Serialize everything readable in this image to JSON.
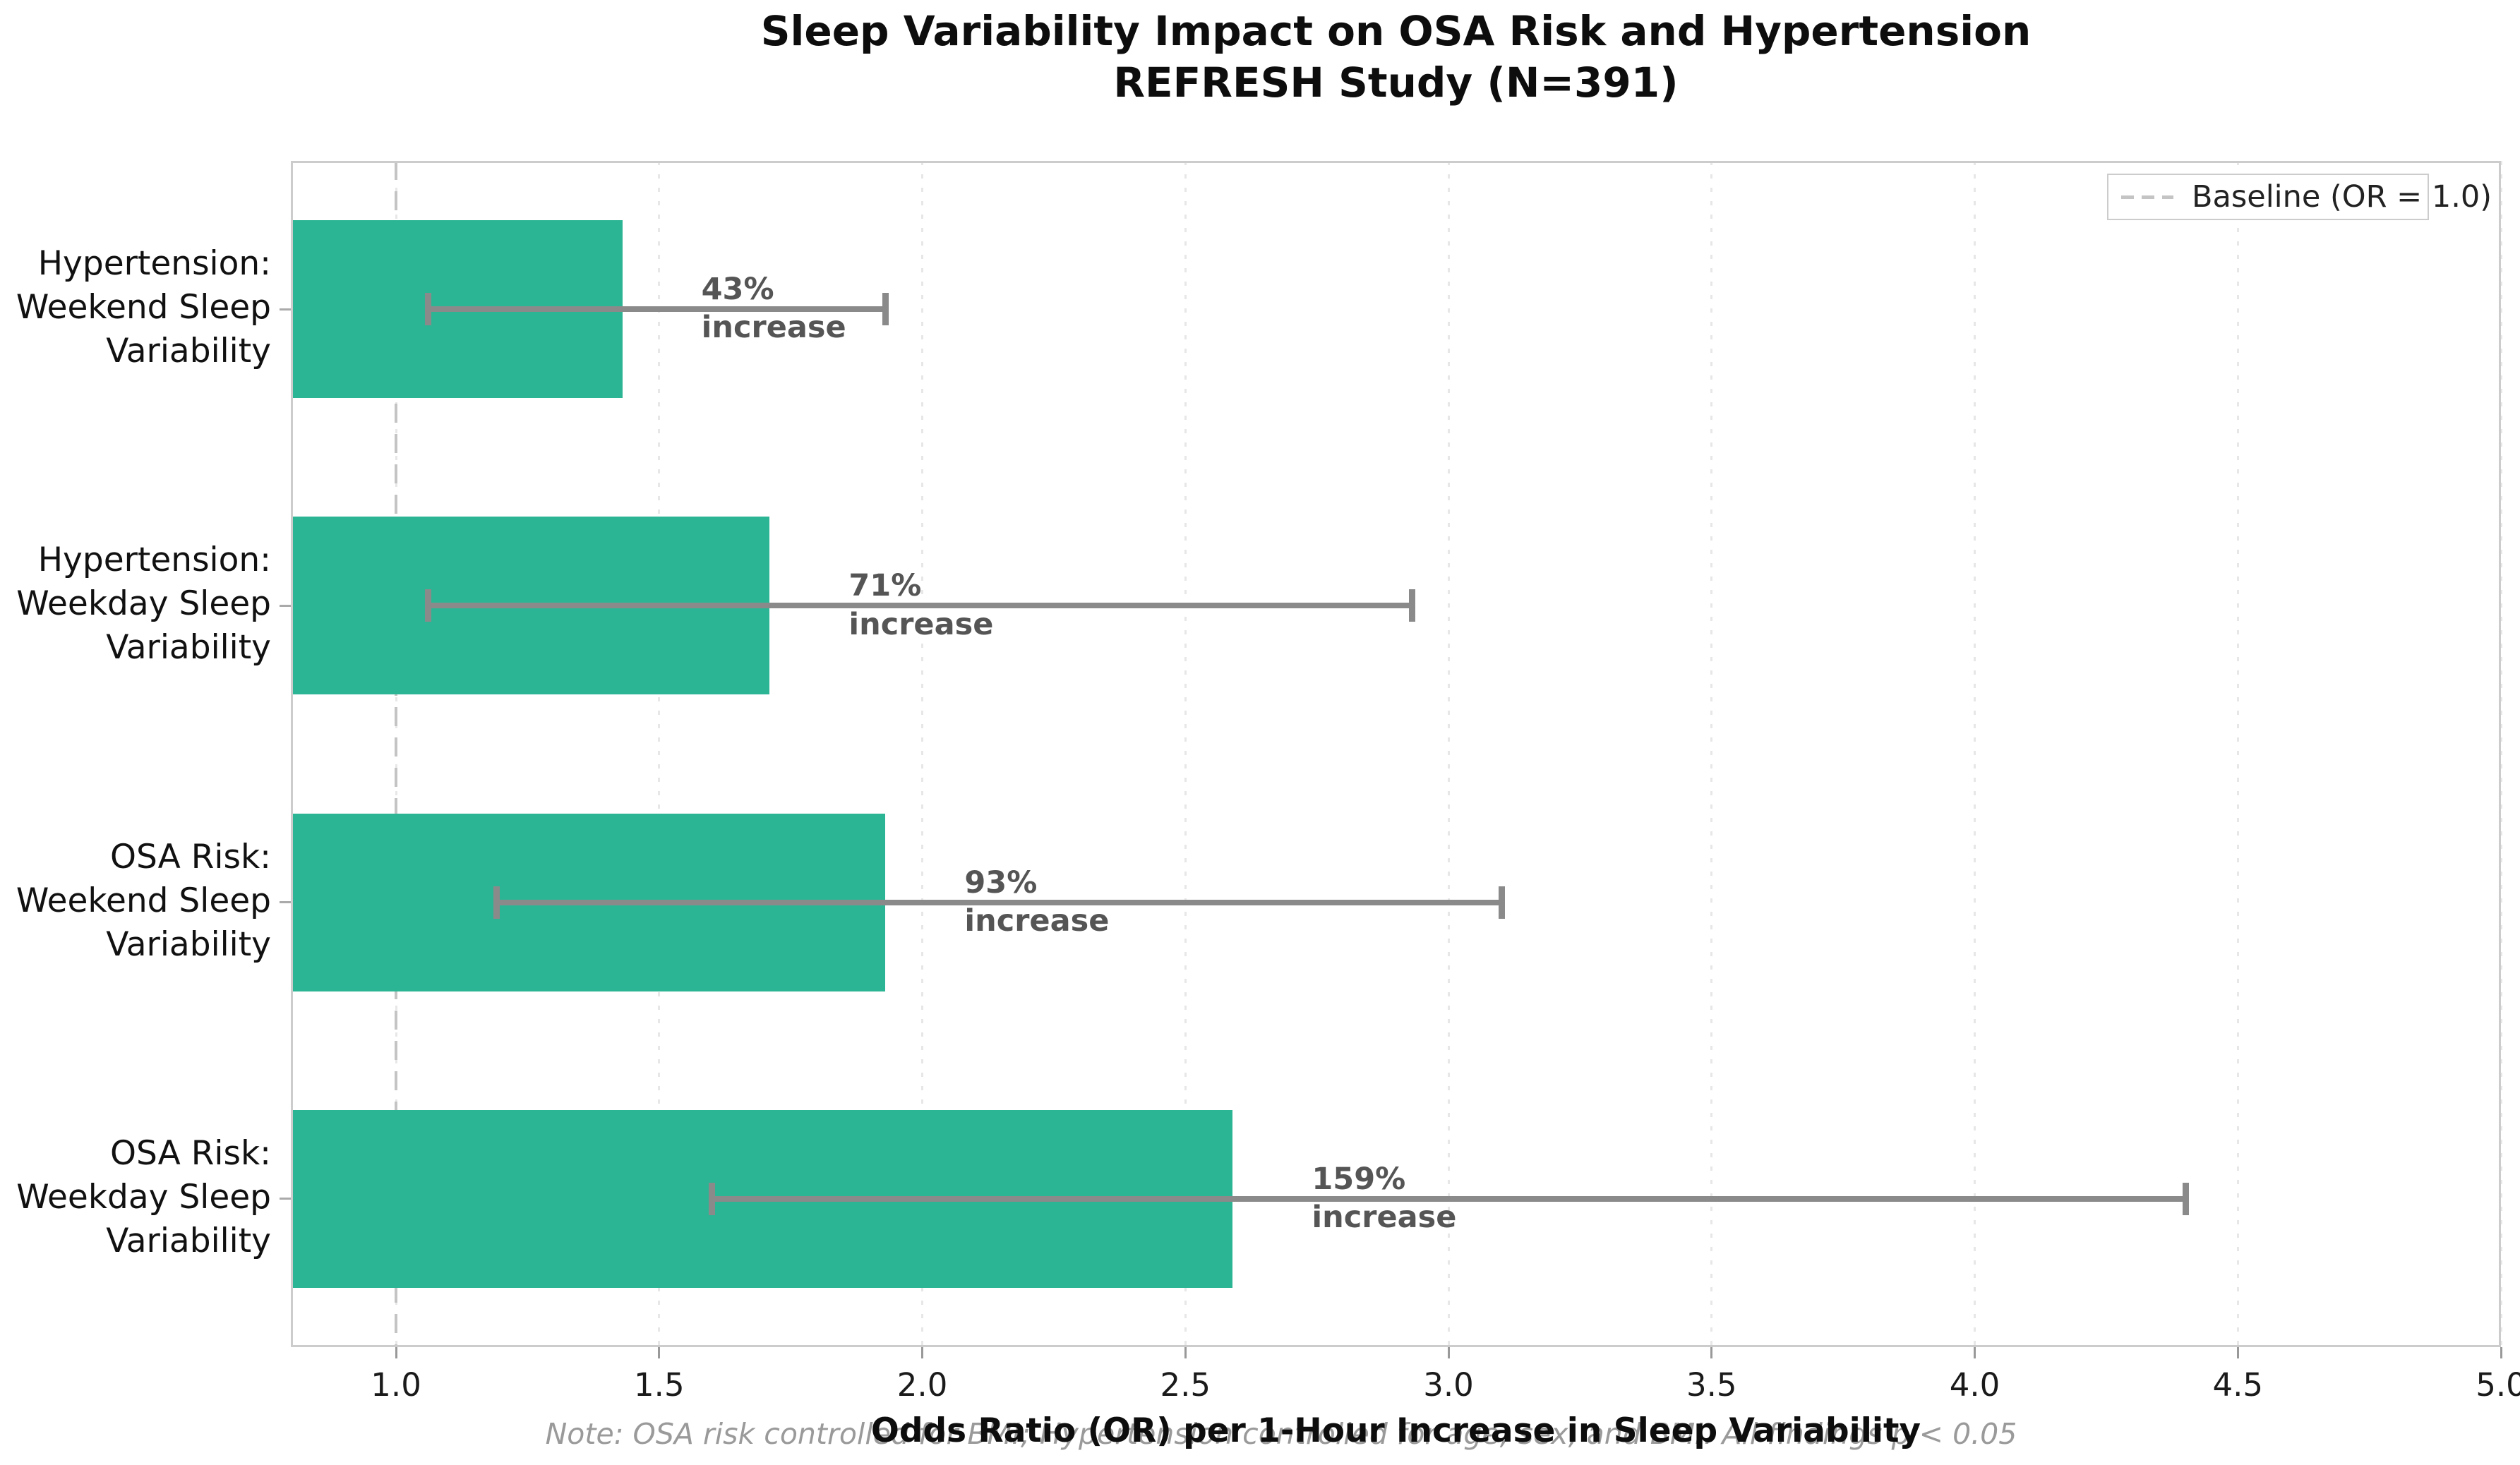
{
  "title": "Sleep Variability Impact on OSA Risk and Hypertension\nREFRESH Study (N=391)",
  "xlabel": "Odds Ratio (OR) per 1-Hour Increase in Sleep Variability",
  "note": "Note: OSA risk controlled for BMI; Hypertension controlled for age, sex, and BMI. All findings p < 0.05",
  "legend": {
    "label": "Baseline (OR = 1.0)"
  },
  "colors": {
    "bar": "#2cb594",
    "error_bar": "#8a8a8a",
    "annotation_text": "#555555",
    "baseline_dash": "#c4c4c4",
    "gridline": "#e7e7e7",
    "spine": "#cccccc",
    "note_text": "#9a9a9a"
  },
  "chart_data": {
    "type": "bar",
    "orientation": "horizontal",
    "title": "Sleep Variability Impact on OSA Risk and Hypertension REFRESH Study (N=391)",
    "xlabel": "Odds Ratio (OR) per 1-Hour Increase in Sleep Variability",
    "categories": [
      "Hypertension:\nWeekend Sleep\nVariability",
      "Hypertension:\nWeekday Sleep\nVariability",
      "OSA Risk:\nWeekend Sleep\nVariability",
      "OSA Risk:\nWeekday Sleep\nVariability"
    ],
    "values": [
      1.43,
      1.71,
      1.93,
      2.59
    ],
    "ci_low": [
      1.06,
      1.06,
      1.19,
      1.6
    ],
    "ci_high": [
      1.93,
      2.93,
      3.1,
      4.4
    ],
    "annotations": [
      "43%\nincrease",
      "71%\nincrease",
      "93%\nincrease",
      "159%\nincrease"
    ],
    "baseline": 1.0,
    "xlim": [
      0.8,
      5.0
    ],
    "xticks": [
      1.0,
      1.5,
      2.0,
      2.5,
      3.0,
      3.5,
      4.0,
      4.5,
      5.0
    ],
    "xtick_labels": [
      "1.0",
      "1.5",
      "2.0",
      "2.5",
      "3.0",
      "3.5",
      "4.0",
      "4.5",
      "5.0"
    ],
    "legend_label": "Baseline (OR = 1.0)",
    "legend_position": "upper right",
    "grid": "dotted vertical gridlines at each x tick",
    "bar_fraction_of_slot": 0.6
  }
}
